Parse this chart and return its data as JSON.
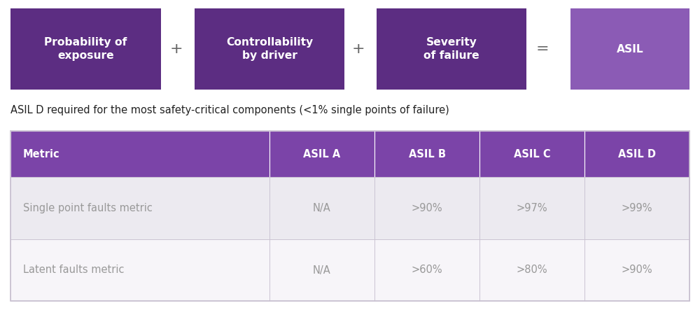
{
  "bg_color": "#ffffff",
  "box_colors": [
    "#5C2D82",
    "#5C2D82",
    "#5C2D82",
    "#8B5BB5"
  ],
  "box_labels": [
    "Probability of\nexposure",
    "Controllability\nby driver",
    "Severity\nof failure",
    "ASIL"
  ],
  "operators": [
    "+",
    "+",
    "="
  ],
  "subtitle": "ASIL D required for the most safety-critical components (<1% single points of failure)",
  "table_header_bg": "#7B44A8",
  "table_row1_bg": "#ECEAF0",
  "table_row2_bg": "#F7F5F9",
  "table_border": "#C8C0D0",
  "header_cols": [
    "Metric",
    "ASIL A",
    "ASIL B",
    "ASIL C",
    "ASIL D"
  ],
  "row1": [
    "Single point faults metric",
    "N/A",
    ">90%",
    ">97%",
    ">99%"
  ],
  "row2": [
    "Latent faults metric",
    "N/A",
    ">60%",
    ">80%",
    ">90%"
  ],
  "header_text_color": "#ffffff",
  "row_text_color": "#999999",
  "subtitle_color": "#222222",
  "operator_color": "#666666"
}
